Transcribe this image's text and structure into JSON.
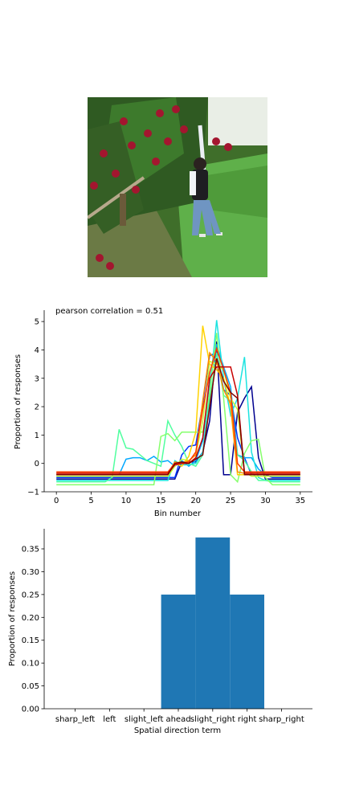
{
  "photo": {
    "description_icon": "photo-apple-orchard-girl-picking-icon",
    "colors": {
      "foliage": "#3f6e2a",
      "grass": "#5fb04a",
      "apple": "#a3162f",
      "sky": "#f4f6f2",
      "jeans": "#6f95c2"
    }
  },
  "chart_data": [
    {
      "type": "line",
      "title": "pearson correlation = 0.51",
      "xlabel": "Bin number",
      "ylabel": "Proportion of responses",
      "xlim": [
        -1.75,
        36.75
      ],
      "ylim": [
        -1.0,
        5.4
      ],
      "xticks": [
        0,
        5,
        10,
        15,
        20,
        25,
        30,
        35
      ],
      "yticks": [
        -1,
        0,
        1,
        2,
        3,
        4,
        5
      ],
      "colormap": "jet",
      "grid": false,
      "x": [
        0,
        1,
        2,
        3,
        4,
        5,
        6,
        7,
        8,
        9,
        10,
        11,
        12,
        13,
        14,
        15,
        16,
        17,
        18,
        19,
        20,
        21,
        22,
        23,
        24,
        25,
        26,
        27,
        28,
        29,
        30,
        31,
        32,
        33,
        34,
        35
      ],
      "series": [
        {
          "color": "#00008f",
          "values": [
            -0.55,
            -0.55,
            -0.55,
            -0.55,
            -0.55,
            -0.55,
            -0.55,
            -0.55,
            -0.55,
            -0.55,
            -0.55,
            -0.55,
            -0.55,
            -0.55,
            -0.55,
            -0.55,
            -0.55,
            -0.55,
            0.05,
            0.05,
            0.05,
            0.4,
            1.5,
            4.3,
            -0.4,
            -0.4,
            1.8,
            2.3,
            2.7,
            0.2,
            -0.55,
            -0.55,
            -0.55,
            -0.55,
            -0.55,
            -0.55
          ]
        },
        {
          "color": "#0038ff",
          "values": [
            -0.5,
            -0.5,
            -0.5,
            -0.5,
            -0.5,
            -0.5,
            -0.5,
            -0.5,
            -0.5,
            -0.5,
            -0.5,
            -0.5,
            -0.5,
            -0.5,
            -0.5,
            -0.5,
            -0.5,
            -0.5,
            0.3,
            0.6,
            0.65,
            2.1,
            3.8,
            3.9,
            2.6,
            2.4,
            0.9,
            0.2,
            -0.4,
            -0.4,
            -0.4,
            -0.5,
            -0.5,
            -0.5,
            -0.5,
            -0.5
          ]
        },
        {
          "color": "#00a8ff",
          "values": [
            -0.4,
            -0.4,
            -0.4,
            -0.4,
            -0.4,
            -0.4,
            -0.4,
            -0.4,
            -0.4,
            -0.4,
            0.15,
            0.2,
            0.2,
            0.1,
            0.25,
            0.05,
            0.1,
            -0.1,
            0.1,
            -0.1,
            0.1,
            0.8,
            2.9,
            4.2,
            3.4,
            2.7,
            0.3,
            0.2,
            0.2,
            -0.2,
            -0.4,
            -0.4,
            -0.4,
            -0.4,
            -0.4,
            -0.4
          ]
        },
        {
          "color": "#1ce3e0",
          "values": [
            -0.6,
            -0.6,
            -0.6,
            -0.6,
            -0.6,
            -0.6,
            -0.6,
            -0.6,
            -0.6,
            -0.6,
            -0.6,
            -0.6,
            -0.6,
            -0.6,
            -0.6,
            -0.6,
            -0.6,
            0.1,
            -0.05,
            -0.05,
            0.0,
            0.4,
            2.5,
            5.05,
            3.0,
            1.7,
            2.3,
            3.75,
            0.4,
            -0.5,
            -0.6,
            -0.6,
            -0.6,
            -0.6,
            -0.6,
            -0.6
          ]
        },
        {
          "color": "#50ff9f",
          "values": [
            -0.65,
            -0.65,
            -0.65,
            -0.65,
            -0.65,
            -0.65,
            -0.65,
            -0.65,
            -0.5,
            1.2,
            0.55,
            0.5,
            0.3,
            0.1,
            0.0,
            -0.1,
            1.5,
            1.0,
            0.6,
            0.0,
            -0.1,
            0.3,
            2.2,
            3.9,
            2.4,
            2.2,
            0.3,
            0.1,
            -0.3,
            -0.6,
            -0.6,
            -0.65,
            -0.65,
            -0.65,
            -0.65,
            -0.65
          ]
        },
        {
          "color": "#86ff6c",
          "values": [
            -0.75,
            -0.75,
            -0.75,
            -0.75,
            -0.75,
            -0.75,
            -0.75,
            -0.75,
            -0.75,
            -0.75,
            -0.75,
            -0.75,
            -0.75,
            -0.75,
            -0.75,
            0.95,
            1.05,
            0.8,
            1.1,
            1.1,
            1.1,
            1.1,
            2.5,
            4.6,
            2.3,
            -0.4,
            -0.65,
            0.35,
            0.8,
            0.85,
            -0.5,
            -0.75,
            -0.75,
            -0.75,
            -0.75,
            -0.75
          ]
        },
        {
          "color": "#c4ff33",
          "values": [
            -0.45,
            -0.45,
            -0.45,
            -0.45,
            -0.45,
            -0.45,
            -0.45,
            -0.45,
            -0.45,
            -0.45,
            -0.45,
            -0.45,
            -0.45,
            -0.45,
            -0.45,
            -0.45,
            -0.45,
            -0.1,
            0.15,
            0.1,
            0.3,
            1.5,
            3.6,
            3.5,
            3.3,
            2.3,
            1.9,
            -0.3,
            -0.45,
            -0.45,
            -0.45,
            -0.45,
            -0.45,
            -0.45,
            -0.45,
            -0.45
          ]
        },
        {
          "color": "#ffd200",
          "values": [
            -0.4,
            -0.4,
            -0.4,
            -0.4,
            -0.4,
            -0.4,
            -0.4,
            -0.4,
            -0.4,
            -0.4,
            -0.4,
            -0.4,
            -0.4,
            -0.4,
            -0.4,
            -0.4,
            -0.4,
            0.0,
            -0.1,
            0.25,
            1.1,
            4.85,
            3.5,
            3.3,
            3.0,
            2.0,
            -0.4,
            -0.4,
            -0.4,
            -0.4,
            -0.4,
            -0.4,
            -0.4,
            -0.4,
            -0.4,
            -0.4
          ]
        },
        {
          "color": "#ff8a00",
          "values": [
            -0.35,
            -0.35,
            -0.35,
            -0.35,
            -0.35,
            -0.35,
            -0.35,
            -0.35,
            -0.35,
            -0.35,
            -0.35,
            -0.35,
            -0.35,
            -0.35,
            -0.35,
            -0.35,
            -0.35,
            0.05,
            0.0,
            0.1,
            0.3,
            2.2,
            3.9,
            3.6,
            2.6,
            2.1,
            -0.3,
            -0.35,
            -0.35,
            -0.35,
            -0.35,
            -0.35,
            -0.35,
            -0.35,
            -0.35,
            -0.35
          ]
        },
        {
          "color": "#ff3a00",
          "values": [
            -0.3,
            -0.3,
            -0.3,
            -0.3,
            -0.3,
            -0.3,
            -0.3,
            -0.3,
            -0.3,
            -0.3,
            -0.3,
            -0.3,
            -0.3,
            -0.3,
            -0.3,
            -0.3,
            -0.3,
            0.0,
            0.0,
            0.05,
            0.4,
            1.9,
            3.2,
            4.05,
            3.3,
            2.5,
            0.0,
            -0.3,
            -0.3,
            -0.3,
            -0.3,
            -0.3,
            -0.3,
            -0.3,
            -0.3,
            -0.3
          ]
        },
        {
          "color": "#c80000",
          "values": [
            -0.35,
            -0.35,
            -0.35,
            -0.35,
            -0.35,
            -0.35,
            -0.35,
            -0.35,
            -0.35,
            -0.35,
            -0.35,
            -0.35,
            -0.35,
            -0.35,
            -0.35,
            -0.35,
            -0.35,
            -0.05,
            0.0,
            0.0,
            0.2,
            0.9,
            3.0,
            3.4,
            3.4,
            3.4,
            2.4,
            -0.35,
            -0.35,
            -0.35,
            -0.35,
            -0.35,
            -0.35,
            -0.35,
            -0.35,
            -0.35
          ]
        },
        {
          "color": "#800000",
          "values": [
            -0.4,
            -0.4,
            -0.4,
            -0.4,
            -0.4,
            -0.4,
            -0.4,
            -0.4,
            -0.4,
            -0.4,
            -0.4,
            -0.4,
            -0.4,
            -0.4,
            -0.4,
            -0.4,
            -0.4,
            0.0,
            0.05,
            0.0,
            0.15,
            0.3,
            2.0,
            3.7,
            2.9,
            2.5,
            2.3,
            -0.4,
            -0.4,
            -0.4,
            -0.4,
            -0.4,
            -0.4,
            -0.4,
            -0.4,
            -0.4
          ]
        }
      ]
    },
    {
      "type": "bar",
      "xlabel": "Spatial direction term",
      "ylabel": "Proportion of responses",
      "categories": [
        "sharp_left",
        "left",
        "slight_left",
        "ahead",
        "slight_right",
        "right",
        "sharp_right"
      ],
      "values": [
        0.0,
        0.0,
        0.0,
        0.25,
        0.375,
        0.25,
        0.0
      ],
      "ylim": [
        0,
        0.394
      ],
      "yticks": [
        "0.00",
        "0.05",
        "0.10",
        "0.15",
        "0.20",
        "0.25",
        "0.30",
        "0.35"
      ],
      "bar_color": "#1f77b4",
      "grid": false
    }
  ]
}
